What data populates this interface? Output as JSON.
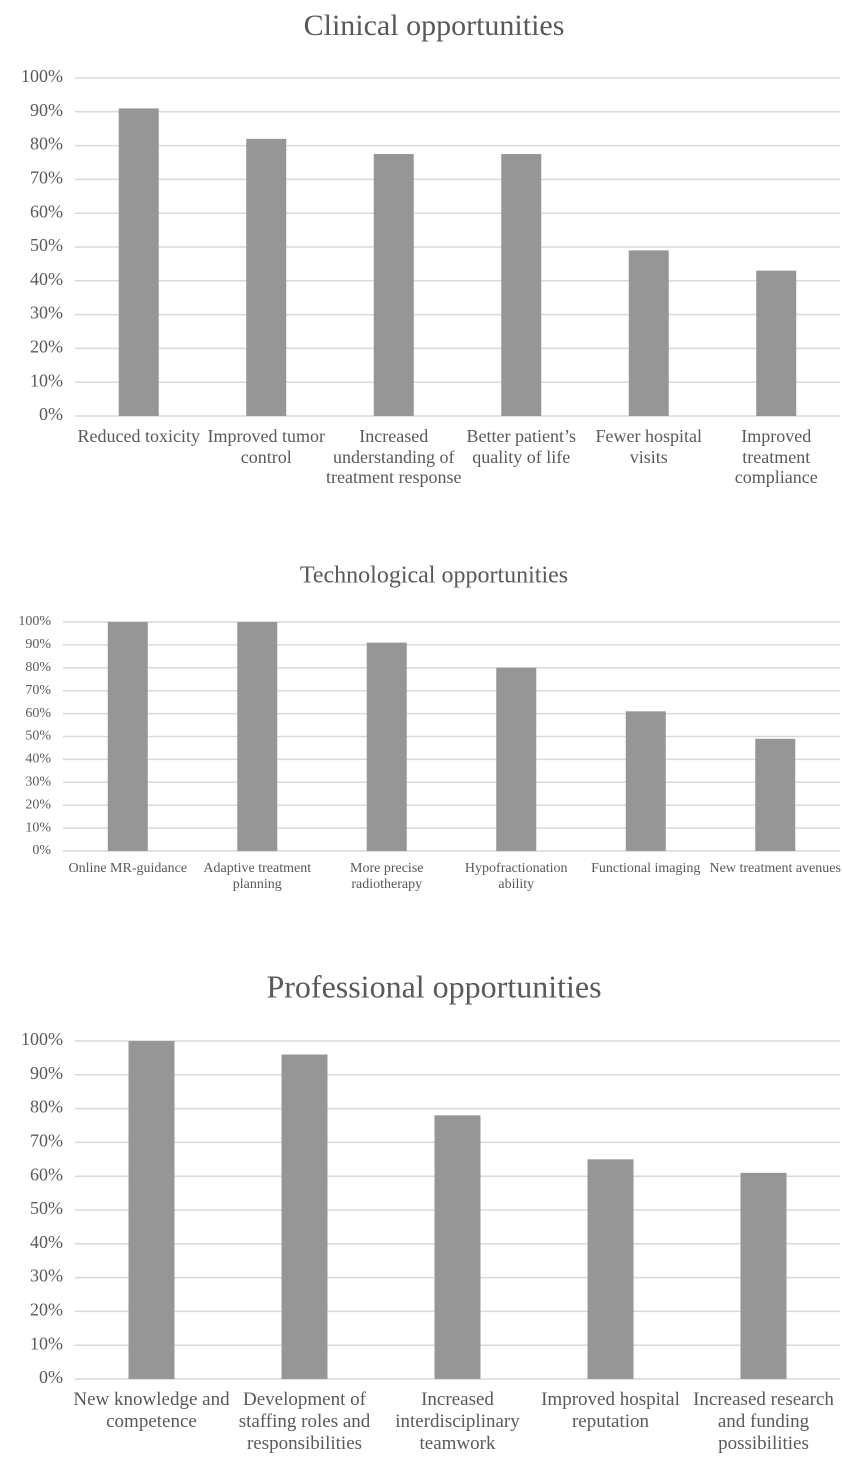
{
  "chart_data": [
    {
      "type": "bar",
      "title": "Clinical opportunities",
      "categories": [
        "Reduced toxicity",
        "Improved tumor control",
        "Increased understanding of treatment response",
        "Better patient’s quality of life",
        "Fewer hospital visits",
        "Improved treatment compliance"
      ],
      "values": [
        91,
        82,
        77.5,
        77.5,
        49,
        43
      ],
      "color": "#969696",
      "ylim": [
        0,
        100
      ],
      "yticks": [
        {
          "value": 0,
          "label": "0%"
        },
        {
          "value": 10,
          "label": "10%"
        },
        {
          "value": 20,
          "label": "20%"
        },
        {
          "value": 30,
          "label": "30%"
        },
        {
          "value": 40,
          "label": "40%"
        },
        {
          "value": 50,
          "label": "50%"
        },
        {
          "value": 60,
          "label": "60%"
        },
        {
          "value": 70,
          "label": "70%"
        },
        {
          "value": 80,
          "label": "80%"
        },
        {
          "value": 90,
          "label": "90%"
        },
        {
          "value": 100,
          "label": "100%"
        }
      ],
      "grid": true
    },
    {
      "type": "bar",
      "title": "Technological opportunities",
      "categories": [
        "Online MR-guidance",
        "Adaptive treatment planning",
        "More precise radiotherapy",
        "Hypofractionation ability",
        "Functional imaging",
        "New treatment avenues"
      ],
      "values": [
        100,
        100,
        91,
        80,
        61,
        49
      ],
      "color": "#969696",
      "ylim": [
        0,
        100
      ],
      "yticks": [
        {
          "value": 0,
          "label": "0%"
        },
        {
          "value": 10,
          "label": "10%"
        },
        {
          "value": 20,
          "label": "20%"
        },
        {
          "value": 30,
          "label": "30%"
        },
        {
          "value": 40,
          "label": "40%"
        },
        {
          "value": 50,
          "label": "50%"
        },
        {
          "value": 60,
          "label": "60%"
        },
        {
          "value": 70,
          "label": "70%"
        },
        {
          "value": 80,
          "label": "80%"
        },
        {
          "value": 90,
          "label": "90%"
        },
        {
          "value": 100,
          "label": "100%"
        }
      ],
      "grid": true
    },
    {
      "type": "bar",
      "title": "Professional opportunities",
      "categories": [
        "New knowledge and competence",
        "Development of staffing roles and responsibilities",
        "Increased interdisciplinary teamwork",
        "Improved hospital reputation",
        "Increased research and funding possibilities"
      ],
      "values": [
        100,
        96,
        78,
        65,
        61
      ],
      "color": "#969696",
      "ylim": [
        0,
        100
      ],
      "yticks": [
        {
          "value": 0,
          "label": "0%"
        },
        {
          "value": 10,
          "label": "10%"
        },
        {
          "value": 20,
          "label": "20%"
        },
        {
          "value": 30,
          "label": "30%"
        },
        {
          "value": 40,
          "label": "40%"
        },
        {
          "value": 50,
          "label": "50%"
        },
        {
          "value": 60,
          "label": "60%"
        },
        {
          "value": 70,
          "label": "70%"
        },
        {
          "value": 80,
          "label": "80%"
        },
        {
          "value": 90,
          "label": "90%"
        },
        {
          "value": 100,
          "label": "100%"
        }
      ],
      "grid": true
    }
  ]
}
